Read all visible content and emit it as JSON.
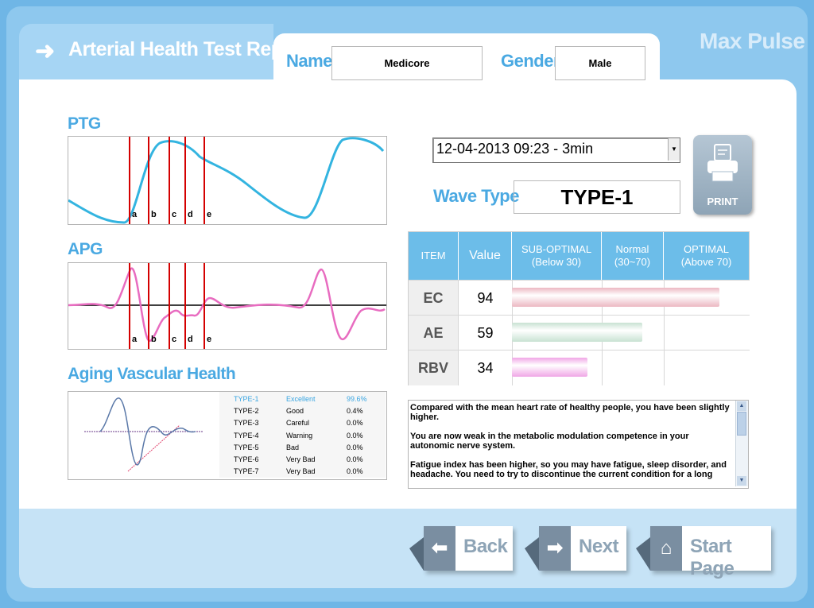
{
  "app": {
    "title": "Arterial Health Test Report",
    "brand": "Max Pulse"
  },
  "header": {
    "name_label": "Name",
    "name_value": "Medicore",
    "gender_label": "Gender",
    "gender_value": "Male"
  },
  "ptg": {
    "title": "PTG",
    "markers": [
      "a",
      "b",
      "c",
      "d",
      "e"
    ],
    "wave_color": "#33b4e0"
  },
  "apg": {
    "title": "APG",
    "markers": [
      "a",
      "b",
      "c",
      "d",
      "e"
    ],
    "wave_color": "#e86cc0"
  },
  "aging": {
    "title": "Aging Vascular Health",
    "rows": [
      {
        "type": "TYPE-1",
        "status": "Excellent",
        "pct": "99.6%",
        "highlight": true
      },
      {
        "type": "TYPE-2",
        "status": "Good",
        "pct": "0.4%",
        "highlight": false
      },
      {
        "type": "TYPE-3",
        "status": "Careful",
        "pct": "0.0%",
        "highlight": false
      },
      {
        "type": "TYPE-4",
        "status": "Warning",
        "pct": "0.0%",
        "highlight": false
      },
      {
        "type": "TYPE-5",
        "status": "Bad",
        "pct": "0.0%",
        "highlight": false
      },
      {
        "type": "TYPE-6",
        "status": "Very Bad",
        "pct": "0.0%",
        "highlight": false
      },
      {
        "type": "TYPE-7",
        "status": "Very Bad",
        "pct": "0.0%",
        "highlight": false
      }
    ]
  },
  "session": {
    "selected": "12-04-2013 09:23 - 3min"
  },
  "print": {
    "label": "PRINT",
    "icon": "printer-icon"
  },
  "wave": {
    "label": "Wave Type",
    "value": "TYPE-1"
  },
  "results": {
    "headers": [
      "ITEM",
      "Value",
      "SUB-OPTIMAL\n(Below 30)",
      "Normal\n(30~70)",
      "OPTIMAL\n(Above 70)"
    ],
    "scale_max": 100,
    "rows": [
      {
        "item": "EC",
        "value": "94",
        "level": 94,
        "color": "#ecb8c2"
      },
      {
        "item": "AE",
        "value": "59",
        "level": 59,
        "color": "#c8e2d2"
      },
      {
        "item": "RBV",
        "value": "34",
        "level": 34,
        "color": "#f0a6e6"
      }
    ]
  },
  "description": "Compared with the mean heart rate of healthy people, you have been slightly higher.\n\nYou are now weak in the metabolic modulation competence in your autonomic nerve system.\n\nFatigue index has been higher, so you may have fatigue, sleep disorder, and headache. You need to try to discontinue the current condition for a long",
  "nav": {
    "back": "Back",
    "next": "Next",
    "start": "Start Page"
  },
  "colors": {
    "accent": "#4aa9e2",
    "header_bg": "#6cbde9",
    "marker": "#d40000"
  }
}
